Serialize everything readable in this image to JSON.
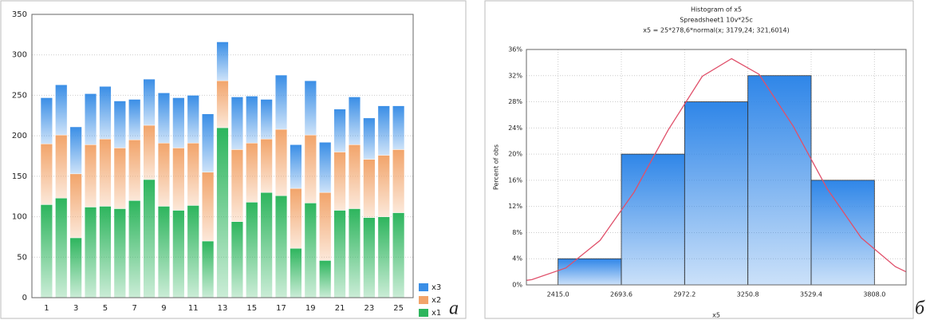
{
  "chart_data": [
    {
      "type": "bar",
      "stacked": true,
      "grid": true,
      "legend": "right-bottom",
      "panel_label": "а",
      "categories": [
        1,
        null,
        3,
        null,
        5,
        null,
        7,
        null,
        9,
        null,
        11,
        null,
        13,
        null,
        15,
        null,
        17,
        null,
        19,
        null,
        21,
        null,
        23,
        null,
        25
      ],
      "series": [
        {
          "name": "x1",
          "color": "#2db55d",
          "values": [
            115,
            123,
            74,
            112,
            113,
            110,
            120,
            146,
            113,
            108,
            114,
            70,
            210,
            94,
            118,
            130,
            126,
            61,
            117,
            46,
            108,
            110,
            99,
            100,
            105
          ]
        },
        {
          "name": "x2",
          "color": "#f2a46a",
          "values": [
            75,
            78,
            79,
            77,
            83,
            75,
            75,
            67,
            78,
            77,
            77,
            85,
            58,
            89,
            73,
            66,
            82,
            74,
            84,
            84,
            72,
            79,
            72,
            76,
            78
          ]
        },
        {
          "name": "x3",
          "color": "#3a8ee6",
          "values": [
            57,
            62,
            58,
            63,
            65,
            58,
            50,
            57,
            62,
            62,
            59,
            72,
            48,
            65,
            58,
            49,
            67,
            54,
            67,
            62,
            53,
            59,
            51,
            61,
            54
          ]
        }
      ],
      "ylim": [
        0,
        350
      ],
      "yticks": [
        0,
        50,
        100,
        150,
        200,
        250,
        300,
        350
      ]
    },
    {
      "type": "histogram",
      "grid": true,
      "panel_label": "б",
      "title": "Histogram of x5",
      "subtitle": "Spreadsheet1 10v*25c",
      "annotation": "x5 = 25*278,6*normal(x; 3179,24; 321,6014)",
      "x_label": "x5",
      "y_label": "Percent of obs",
      "color": "#2f86e8",
      "bins": [
        2415,
        2693.6,
        2972.2,
        3250.8,
        3529.4,
        3808
      ],
      "values": [
        4,
        20,
        28,
        32,
        16
      ],
      "fit_curve": {
        "color": "#e0506a",
        "x": [
          2276,
          2300,
          2450,
          2600,
          2750,
          2900,
          3050,
          3179,
          3300,
          3450,
          3600,
          3750,
          3900,
          3947
        ],
        "values": [
          0.7,
          0.8,
          2.6,
          6.8,
          14.2,
          23.7,
          31.9,
          34.6,
          32.2,
          24.3,
          14.7,
          7.2,
          2.8,
          2.0
        ]
      },
      "xlim": [
        2275.7,
        3947.3
      ],
      "xticks": [
        {
          "value": 2415,
          "label": "2415.0"
        },
        2693.6,
        2972.2,
        3250.8,
        3529.4,
        {
          "value": 3808,
          "label": "3808.0"
        }
      ],
      "ylim": [
        0,
        36
      ],
      "yticks": [
        {
          "value": 0,
          "label": "0%"
        },
        {
          "value": 4,
          "label": "4%"
        },
        {
          "value": 8,
          "label": "8%"
        },
        {
          "value": 12,
          "label": "12%"
        },
        {
          "value": 16,
          "label": "16%"
        },
        {
          "value": 20,
          "label": "20%"
        },
        {
          "value": 24,
          "label": "24%"
        },
        {
          "value": 28,
          "label": "28%"
        },
        {
          "value": 32,
          "label": "32%"
        },
        {
          "value": 36,
          "label": "36%"
        }
      ]
    }
  ]
}
